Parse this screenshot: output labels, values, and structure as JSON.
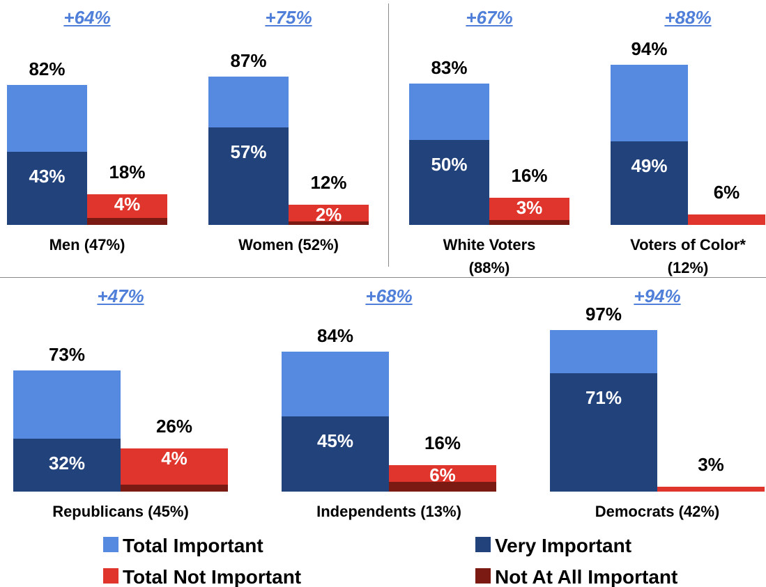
{
  "chart_data": {
    "type": "bar",
    "categories": [
      "Men (47%)",
      "Women (52%)",
      "White Voters (88%)",
      "Voters of Color* (12%)",
      "Republicans (45%)",
      "Independents (13%)",
      "Democrats (42%)"
    ],
    "net": {
      "values": [
        64,
        75,
        67,
        88,
        47,
        68,
        94
      ],
      "value_labels": [
        "+64%",
        "+75%",
        "+67%",
        "+88%",
        "+47%",
        "+68%",
        "+94%"
      ]
    },
    "series": [
      {
        "name": "Total Important",
        "color": "#5689e0",
        "values": [
          82,
          87,
          83,
          94,
          73,
          84,
          97
        ],
        "value_labels": [
          "82%",
          "87%",
          "83%",
          "94%",
          "73%",
          "84%",
          "97%"
        ]
      },
      {
        "name": "Very Important",
        "color": "#22427c",
        "values": [
          43,
          57,
          50,
          49,
          32,
          45,
          71
        ],
        "value_labels": [
          "43%",
          "57%",
          "50%",
          "49%",
          "32%",
          "45%",
          "71%"
        ]
      },
      {
        "name": "Total Not Important",
        "color": "#e0352c",
        "values": [
          18,
          12,
          16,
          6,
          26,
          16,
          3
        ],
        "value_labels": [
          "18%",
          "12%",
          "16%",
          "6%",
          "26%",
          "16%",
          "3%"
        ]
      },
      {
        "name": "Not At All Important",
        "color": "#7a1a13",
        "values": [
          4,
          2,
          3,
          null,
          4,
          6,
          null
        ],
        "value_labels": [
          "4%",
          "2%",
          "3%",
          null,
          "4%",
          "6%",
          null
        ]
      }
    ],
    "ylim": [
      0,
      100
    ],
    "legend": "bottom"
  }
}
